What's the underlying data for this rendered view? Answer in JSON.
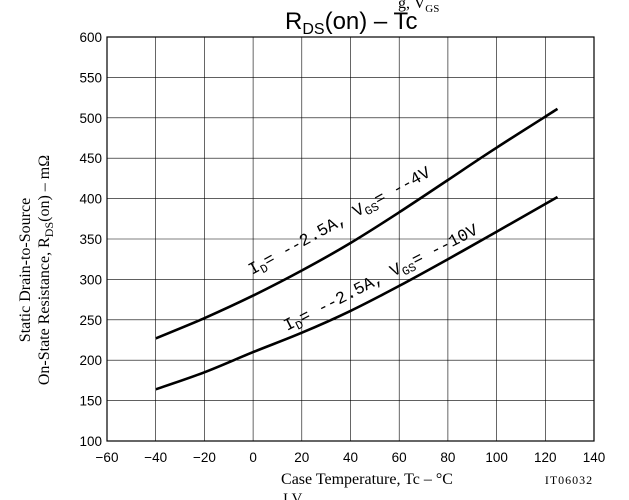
{
  "chart_data": {
    "type": "line",
    "title_main": "R",
    "title_sub": "DS",
    "title_rest": "(on)  –  Tc",
    "top_fragment": "g, V",
    "top_fragment_sub": "GS",
    "ylabel_line1": "Static Drain-to-Source",
    "ylabel_line2_prefix": "On-State Resistance, R",
    "ylabel_line2_sub": "DS",
    "ylabel_line2_suffix": "(on)  –  mΩ",
    "xlabel": "Case Temperature, Tc  –  °C",
    "code": "IT06032",
    "bottom_fragment": "I     V",
    "xlim": [
      -60,
      140
    ],
    "ylim": [
      100,
      600
    ],
    "x_ticks": [
      -60,
      -40,
      -20,
      0,
      20,
      40,
      60,
      80,
      100,
      120,
      140
    ],
    "y_ticks": [
      100,
      150,
      200,
      250,
      300,
      350,
      400,
      450,
      500,
      550,
      600
    ],
    "grid": true,
    "series": [
      {
        "name": "ID= --2.5A, VGS= --4V",
        "label_I": "I",
        "label_Isub": "D",
        "label_mid": "= --2.5A, V",
        "label_Vsub": "GS",
        "label_end": "= --4V",
        "x": [
          -40,
          -20,
          0,
          20,
          40,
          60,
          80,
          100,
          125
        ],
        "y": [
          227,
          252,
          280,
          311,
          345,
          383,
          423,
          463,
          511
        ]
      },
      {
        "name": "ID= --2.5A, VGS= --10V",
        "label_I": "I",
        "label_Isub": "D",
        "label_mid": "= --2.5A, V",
        "label_Vsub": "GS",
        "label_end": "= --10V",
        "x": [
          -40,
          -20,
          0,
          20,
          40,
          60,
          80,
          100,
          125
        ],
        "y": [
          164,
          185,
          210,
          234,
          261,
          292,
          325,
          359,
          402
        ]
      }
    ]
  }
}
